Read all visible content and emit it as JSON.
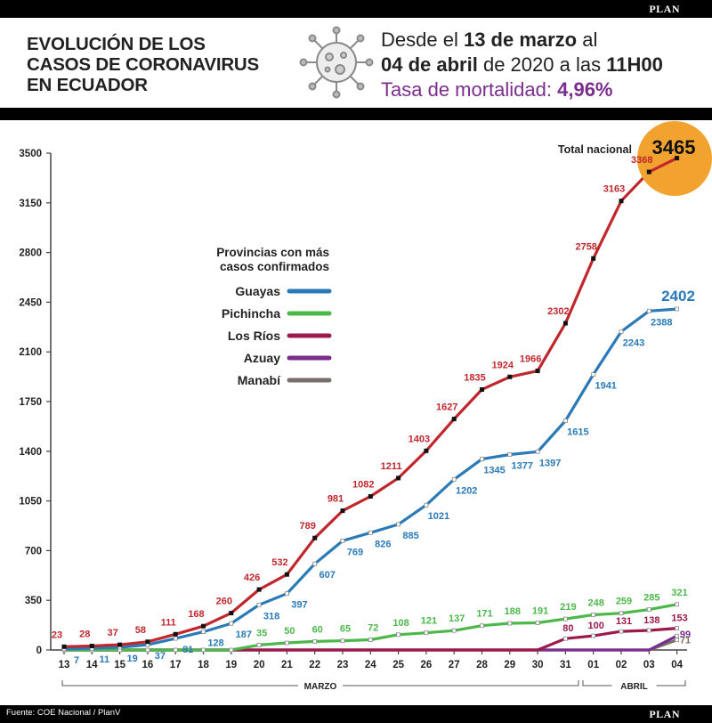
{
  "header": {
    "brand": "PLAN",
    "title_lines": [
      "EVOLUCIÓN DE LOS",
      "CASOS DE CORONAVIRUS",
      "EN ECUADOR"
    ],
    "subtitle": {
      "p1": "Desde el ",
      "b1": "13 de marzo",
      "p2": " al",
      "b2": "04 de abril",
      "p3": " de 2020 a las ",
      "b3": "11H00"
    },
    "mortality_label": "Tasa de mortalidad: ",
    "mortality_value": "4,96%"
  },
  "footer": {
    "source": "Fuente: COE Nacional / PlanV",
    "brand": "PLAN"
  },
  "chart_data": {
    "type": "line",
    "x": [
      "13",
      "14",
      "15",
      "16",
      "17",
      "18",
      "19",
      "20",
      "21",
      "22",
      "23",
      "24",
      "25",
      "26",
      "27",
      "28",
      "29",
      "30",
      "31",
      "01",
      "02",
      "03",
      "04"
    ],
    "month_groups": [
      {
        "label": "MARZO",
        "from": "13",
        "to": "31"
      },
      {
        "label": "ABRIL",
        "from": "01",
        "to": "04"
      }
    ],
    "ylim": [
      0,
      3500
    ],
    "yticks": [
      0,
      350,
      700,
      1050,
      1400,
      1750,
      2100,
      2450,
      2800,
      3150,
      3500
    ],
    "legend_title": [
      "Provincias con más",
      "casos confirmados"
    ],
    "total": {
      "name": "Total nacional",
      "color": "#c0272d",
      "label_color": "#c0272d",
      "values": [
        23,
        28,
        37,
        58,
        111,
        168,
        260,
        426,
        532,
        789,
        981,
        1082,
        1211,
        1403,
        1627,
        1835,
        1924,
        1966,
        2302,
        2758,
        3163,
        3368,
        3465
      ],
      "final_label": "3465",
      "highlight_color": "#f2a22e"
    },
    "series": [
      {
        "name": "Guayas",
        "color": "#2a7ab8",
        "values": [
          7,
          11,
          19,
          37,
          81,
          128,
          187,
          318,
          397,
          607,
          769,
          826,
          885,
          1021,
          1202,
          1345,
          1377,
          1397,
          1615,
          1941,
          2243,
          2388,
          2402
        ]
      },
      {
        "name": "Pichincha",
        "color": "#4cb84a",
        "values": [
          0,
          0,
          0,
          0,
          0,
          0,
          0,
          35,
          50,
          60,
          65,
          72,
          108,
          121,
          137,
          171,
          188,
          191,
          219,
          248,
          259,
          285,
          321
        ]
      },
      {
        "name": "Los Ríos",
        "color": "#9c1a4a",
        "values": [
          0,
          0,
          0,
          0,
          0,
          0,
          0,
          0,
          0,
          0,
          0,
          0,
          0,
          0,
          0,
          0,
          0,
          0,
          80,
          100,
          131,
          138,
          153
        ]
      },
      {
        "name": "Azuay",
        "color": "#7b2d8e",
        "values": [
          0,
          0,
          0,
          0,
          0,
          0,
          0,
          0,
          0,
          0,
          0,
          0,
          0,
          0,
          0,
          0,
          0,
          0,
          0,
          0,
          0,
          0,
          99
        ]
      },
      {
        "name": "Manabí",
        "color": "#7a6f68",
        "values": [
          0,
          0,
          0,
          0,
          0,
          0,
          0,
          0,
          0,
          0,
          0,
          0,
          0,
          0,
          0,
          0,
          0,
          0,
          0,
          0,
          0,
          0,
          71
        ]
      }
    ],
    "grid": false
  }
}
